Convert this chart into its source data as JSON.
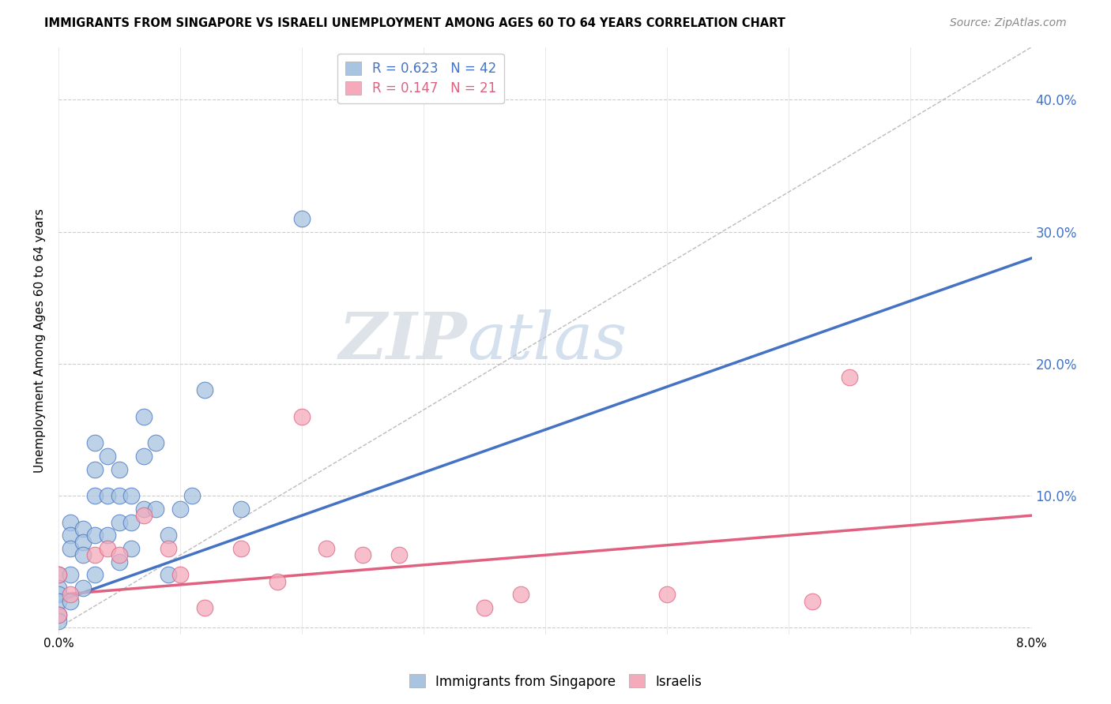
{
  "title": "IMMIGRANTS FROM SINGAPORE VS ISRAELI UNEMPLOYMENT AMONG AGES 60 TO 64 YEARS CORRELATION CHART",
  "source": "Source: ZipAtlas.com",
  "ylabel": "Unemployment Among Ages 60 to 64 years",
  "xmin": 0.0,
  "xmax": 0.08,
  "ymin": -0.005,
  "ymax": 0.44,
  "yticks": [
    0.0,
    0.1,
    0.2,
    0.3,
    0.4
  ],
  "ytick_labels": [
    "",
    "10.0%",
    "20.0%",
    "30.0%",
    "40.0%"
  ],
  "xticks": [
    0.0,
    0.01,
    0.02,
    0.03,
    0.04,
    0.05,
    0.06,
    0.07,
    0.08
  ],
  "legend_r1": "R = 0.623",
  "legend_n1": "N = 42",
  "legend_r2": "R = 0.147",
  "legend_n2": "N = 21",
  "blue_color": "#A8C4E0",
  "pink_color": "#F4AABA",
  "blue_line_color": "#4472C4",
  "pink_line_color": "#E06080",
  "watermark_zip": "ZIP",
  "watermark_atlas": "atlas",
  "blue_scatter_x": [
    0.0,
    0.0,
    0.0,
    0.0,
    0.0,
    0.0,
    0.001,
    0.001,
    0.001,
    0.001,
    0.001,
    0.002,
    0.002,
    0.002,
    0.002,
    0.003,
    0.003,
    0.003,
    0.003,
    0.003,
    0.004,
    0.004,
    0.004,
    0.005,
    0.005,
    0.005,
    0.005,
    0.006,
    0.006,
    0.006,
    0.007,
    0.007,
    0.007,
    0.008,
    0.008,
    0.009,
    0.009,
    0.01,
    0.011,
    0.012,
    0.015,
    0.02
  ],
  "blue_scatter_y": [
    0.04,
    0.03,
    0.025,
    0.02,
    0.01,
    0.005,
    0.08,
    0.07,
    0.06,
    0.04,
    0.02,
    0.075,
    0.065,
    0.055,
    0.03,
    0.14,
    0.12,
    0.1,
    0.07,
    0.04,
    0.13,
    0.1,
    0.07,
    0.12,
    0.1,
    0.08,
    0.05,
    0.1,
    0.08,
    0.06,
    0.16,
    0.13,
    0.09,
    0.14,
    0.09,
    0.07,
    0.04,
    0.09,
    0.1,
    0.18,
    0.09,
    0.31
  ],
  "pink_scatter_x": [
    0.0,
    0.0,
    0.001,
    0.003,
    0.004,
    0.005,
    0.007,
    0.009,
    0.01,
    0.012,
    0.015,
    0.018,
    0.02,
    0.022,
    0.025,
    0.028,
    0.035,
    0.038,
    0.05,
    0.062,
    0.065
  ],
  "pink_scatter_y": [
    0.04,
    0.01,
    0.025,
    0.055,
    0.06,
    0.055,
    0.085,
    0.06,
    0.04,
    0.015,
    0.06,
    0.035,
    0.16,
    0.06,
    0.055,
    0.055,
    0.015,
    0.025,
    0.025,
    0.02,
    0.19
  ],
  "blue_line_x": [
    0.0,
    0.08
  ],
  "blue_line_y": [
    0.02,
    0.28
  ],
  "pink_line_x": [
    0.0,
    0.08
  ],
  "pink_line_y": [
    0.025,
    0.085
  ],
  "diag_line_x": [
    0.0,
    0.08
  ],
  "diag_line_y": [
    0.0,
    0.44
  ]
}
